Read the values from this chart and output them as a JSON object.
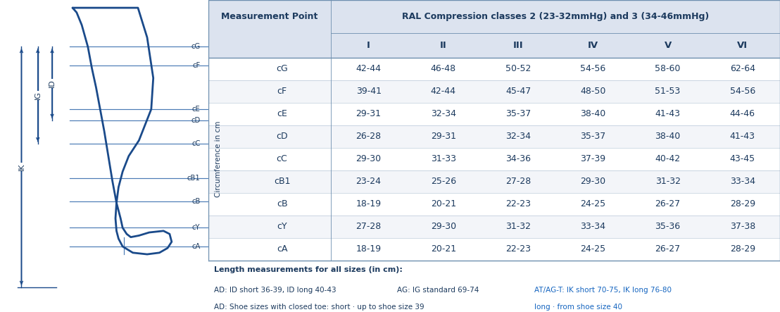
{
  "header_row1_left": "Measurement Point",
  "header_row1_right": "RAL Compression classes 2 (23-32mmHg) and 3 (34-46mmHg)",
  "header_row2": [
    "I",
    "II",
    "III",
    "IV",
    "V",
    "VI"
  ],
  "y_axis_label": "Circumference in cm",
  "rows": [
    [
      "cG",
      "42-44",
      "46-48",
      "50-52",
      "54-56",
      "58-60",
      "62-64"
    ],
    [
      "cF",
      "39-41",
      "42-44",
      "45-47",
      "48-50",
      "51-53",
      "54-56"
    ],
    [
      "cE",
      "29-31",
      "32-34",
      "35-37",
      "38-40",
      "41-43",
      "44-46"
    ],
    [
      "cD",
      "26-28",
      "29-31",
      "32-34",
      "35-37",
      "38-40",
      "41-43"
    ],
    [
      "cC",
      "29-30",
      "31-33",
      "34-36",
      "37-39",
      "40-42",
      "43-45"
    ],
    [
      "cB1",
      "23-24",
      "25-26",
      "27-28",
      "29-30",
      "31-32",
      "33-34"
    ],
    [
      "cB",
      "18-19",
      "20-21",
      "22-23",
      "24-25",
      "26-27",
      "28-29"
    ],
    [
      "cY",
      "27-28",
      "29-30",
      "31-32",
      "33-34",
      "35-36",
      "37-38"
    ],
    [
      "cA",
      "18-19",
      "20-21",
      "22-23",
      "24-25",
      "26-27",
      "28-29"
    ]
  ],
  "footer_bold": "Length measurements for all sizes (in cm):",
  "footer_line1_col1": "AD: ID short 36-39, ID long 40-43",
  "footer_line1_col2": "AG: IG standard 69-74",
  "footer_line1_col3": "AT/AG-T: IK short 70-75, IK long 76-80",
  "footer_line2_col1": "AD: Shoe sizes with closed toe: short · up to shoe size 39",
  "footer_line2_col3": "long · from shoe size 40",
  "colors": {
    "header_bg": "#dce3ef",
    "white": "#ffffff",
    "border": "#6e8faf",
    "text_dark": "#1c3a5e",
    "footer_blue": "#1565c0",
    "row_alt": "#f3f5f9",
    "leg_blue": "#1a4a8a",
    "line_blue": "#4a7ab5"
  },
  "fig_width": 11.08,
  "fig_height": 4.43
}
